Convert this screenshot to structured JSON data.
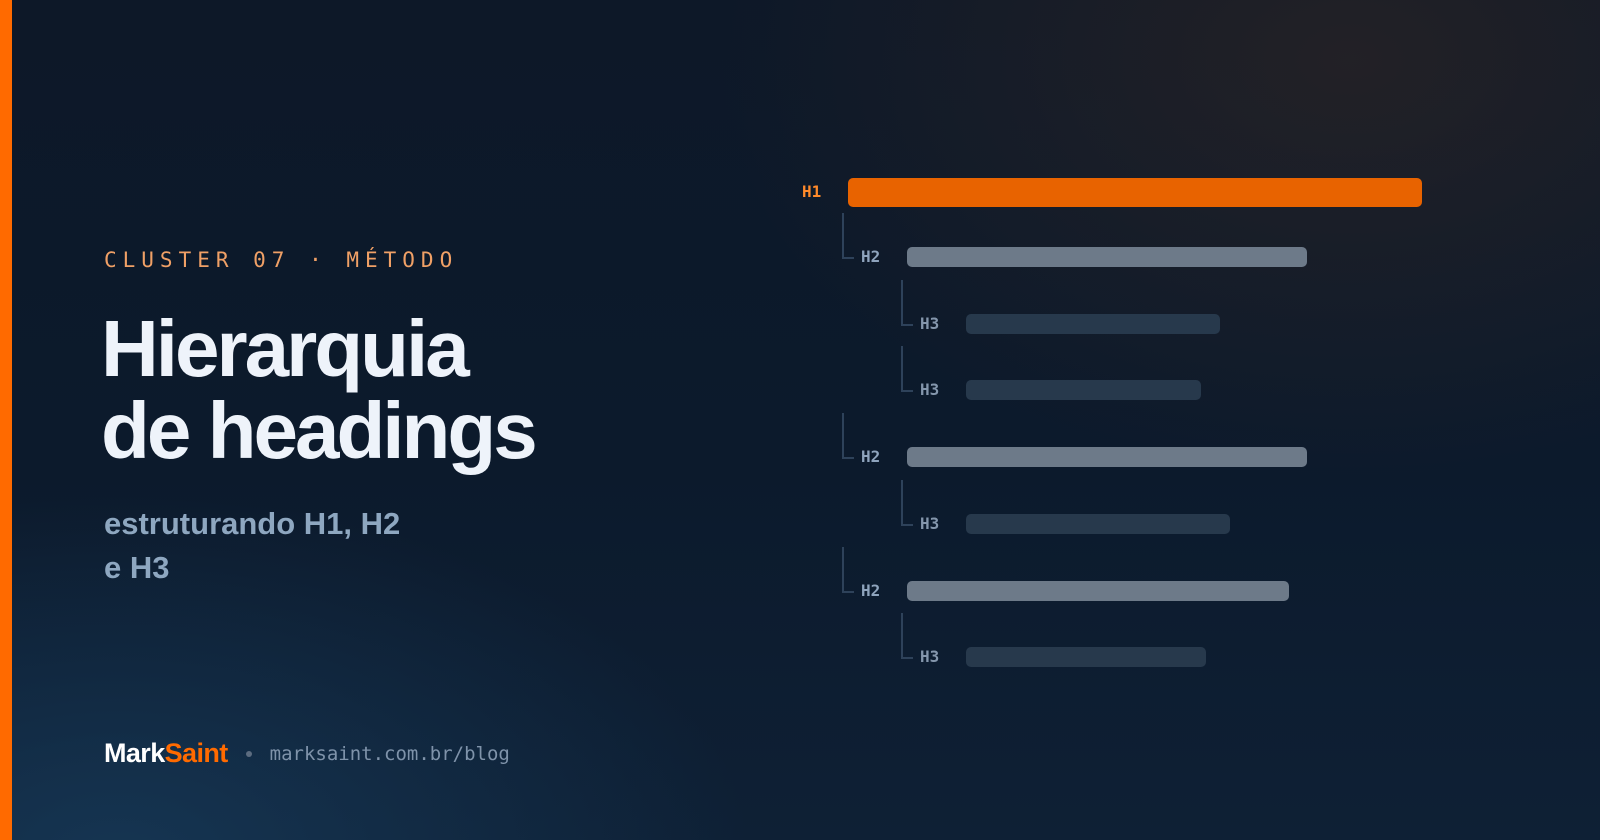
{
  "eyebrow": "CLUSTER 07 · MÉTODO",
  "title": {
    "line1": "Hierarquia",
    "line2": "de headings"
  },
  "subtitle": {
    "line1": "estruturando H1, H2",
    "line2": "e H3"
  },
  "brand": {
    "part1": "Mark",
    "part2": "Saint",
    "url": "marksaint.com.br/blog"
  },
  "outline": [
    {
      "tag": "H1",
      "level": 1
    },
    {
      "tag": "H2",
      "level": 2
    },
    {
      "tag": "H3",
      "level": 3
    },
    {
      "tag": "H3",
      "level": 3
    },
    {
      "tag": "H2",
      "level": 2
    },
    {
      "tag": "H3",
      "level": 3
    },
    {
      "tag": "H2",
      "level": 2
    },
    {
      "tag": "H3",
      "level": 3
    }
  ],
  "colors": {
    "accent": "#ff6a00",
    "h1_bar": "#e86300",
    "h2_bar": "#6d7a89",
    "h3_bar": "#27394c",
    "background": "#0d1828"
  }
}
